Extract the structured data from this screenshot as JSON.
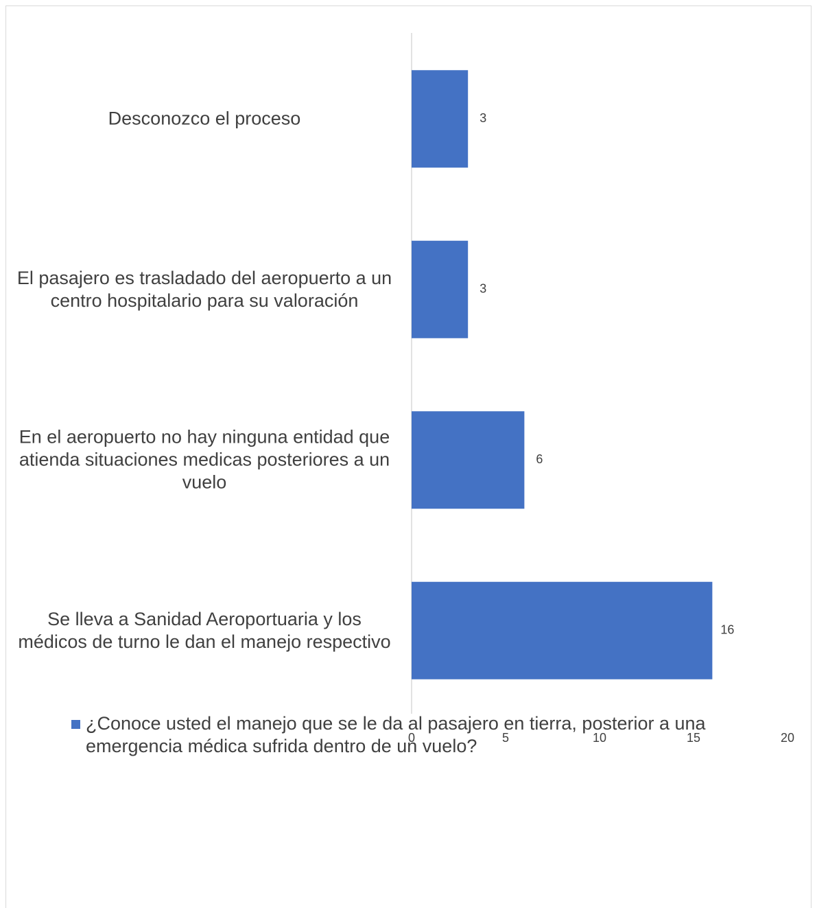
{
  "chart_data": {
    "type": "barh",
    "categories": [
      "Desconozco el proceso",
      "El pasajero es trasladado del aeropuerto a un centro hospitalario para su valoración",
      "En el aeropuerto no hay ninguna entidad que atienda situaciones medicas posteriores a un vuelo",
      "Se lleva a Sanidad Aeroportuaria y los médicos de turno le dan el manejo respectivo"
    ],
    "series": [
      {
        "name": "¿Conoce usted el manejo que se le da al pasajero en tierra, posterior a una emergencia médica sufrida dentro de un vuelo?",
        "color": "#4472c4",
        "values": [
          3,
          3,
          6,
          16
        ]
      }
    ],
    "xlim": [
      0,
      20
    ],
    "xticks": [
      0,
      5,
      10,
      15,
      20
    ],
    "grid": false,
    "legend": "bottom"
  }
}
